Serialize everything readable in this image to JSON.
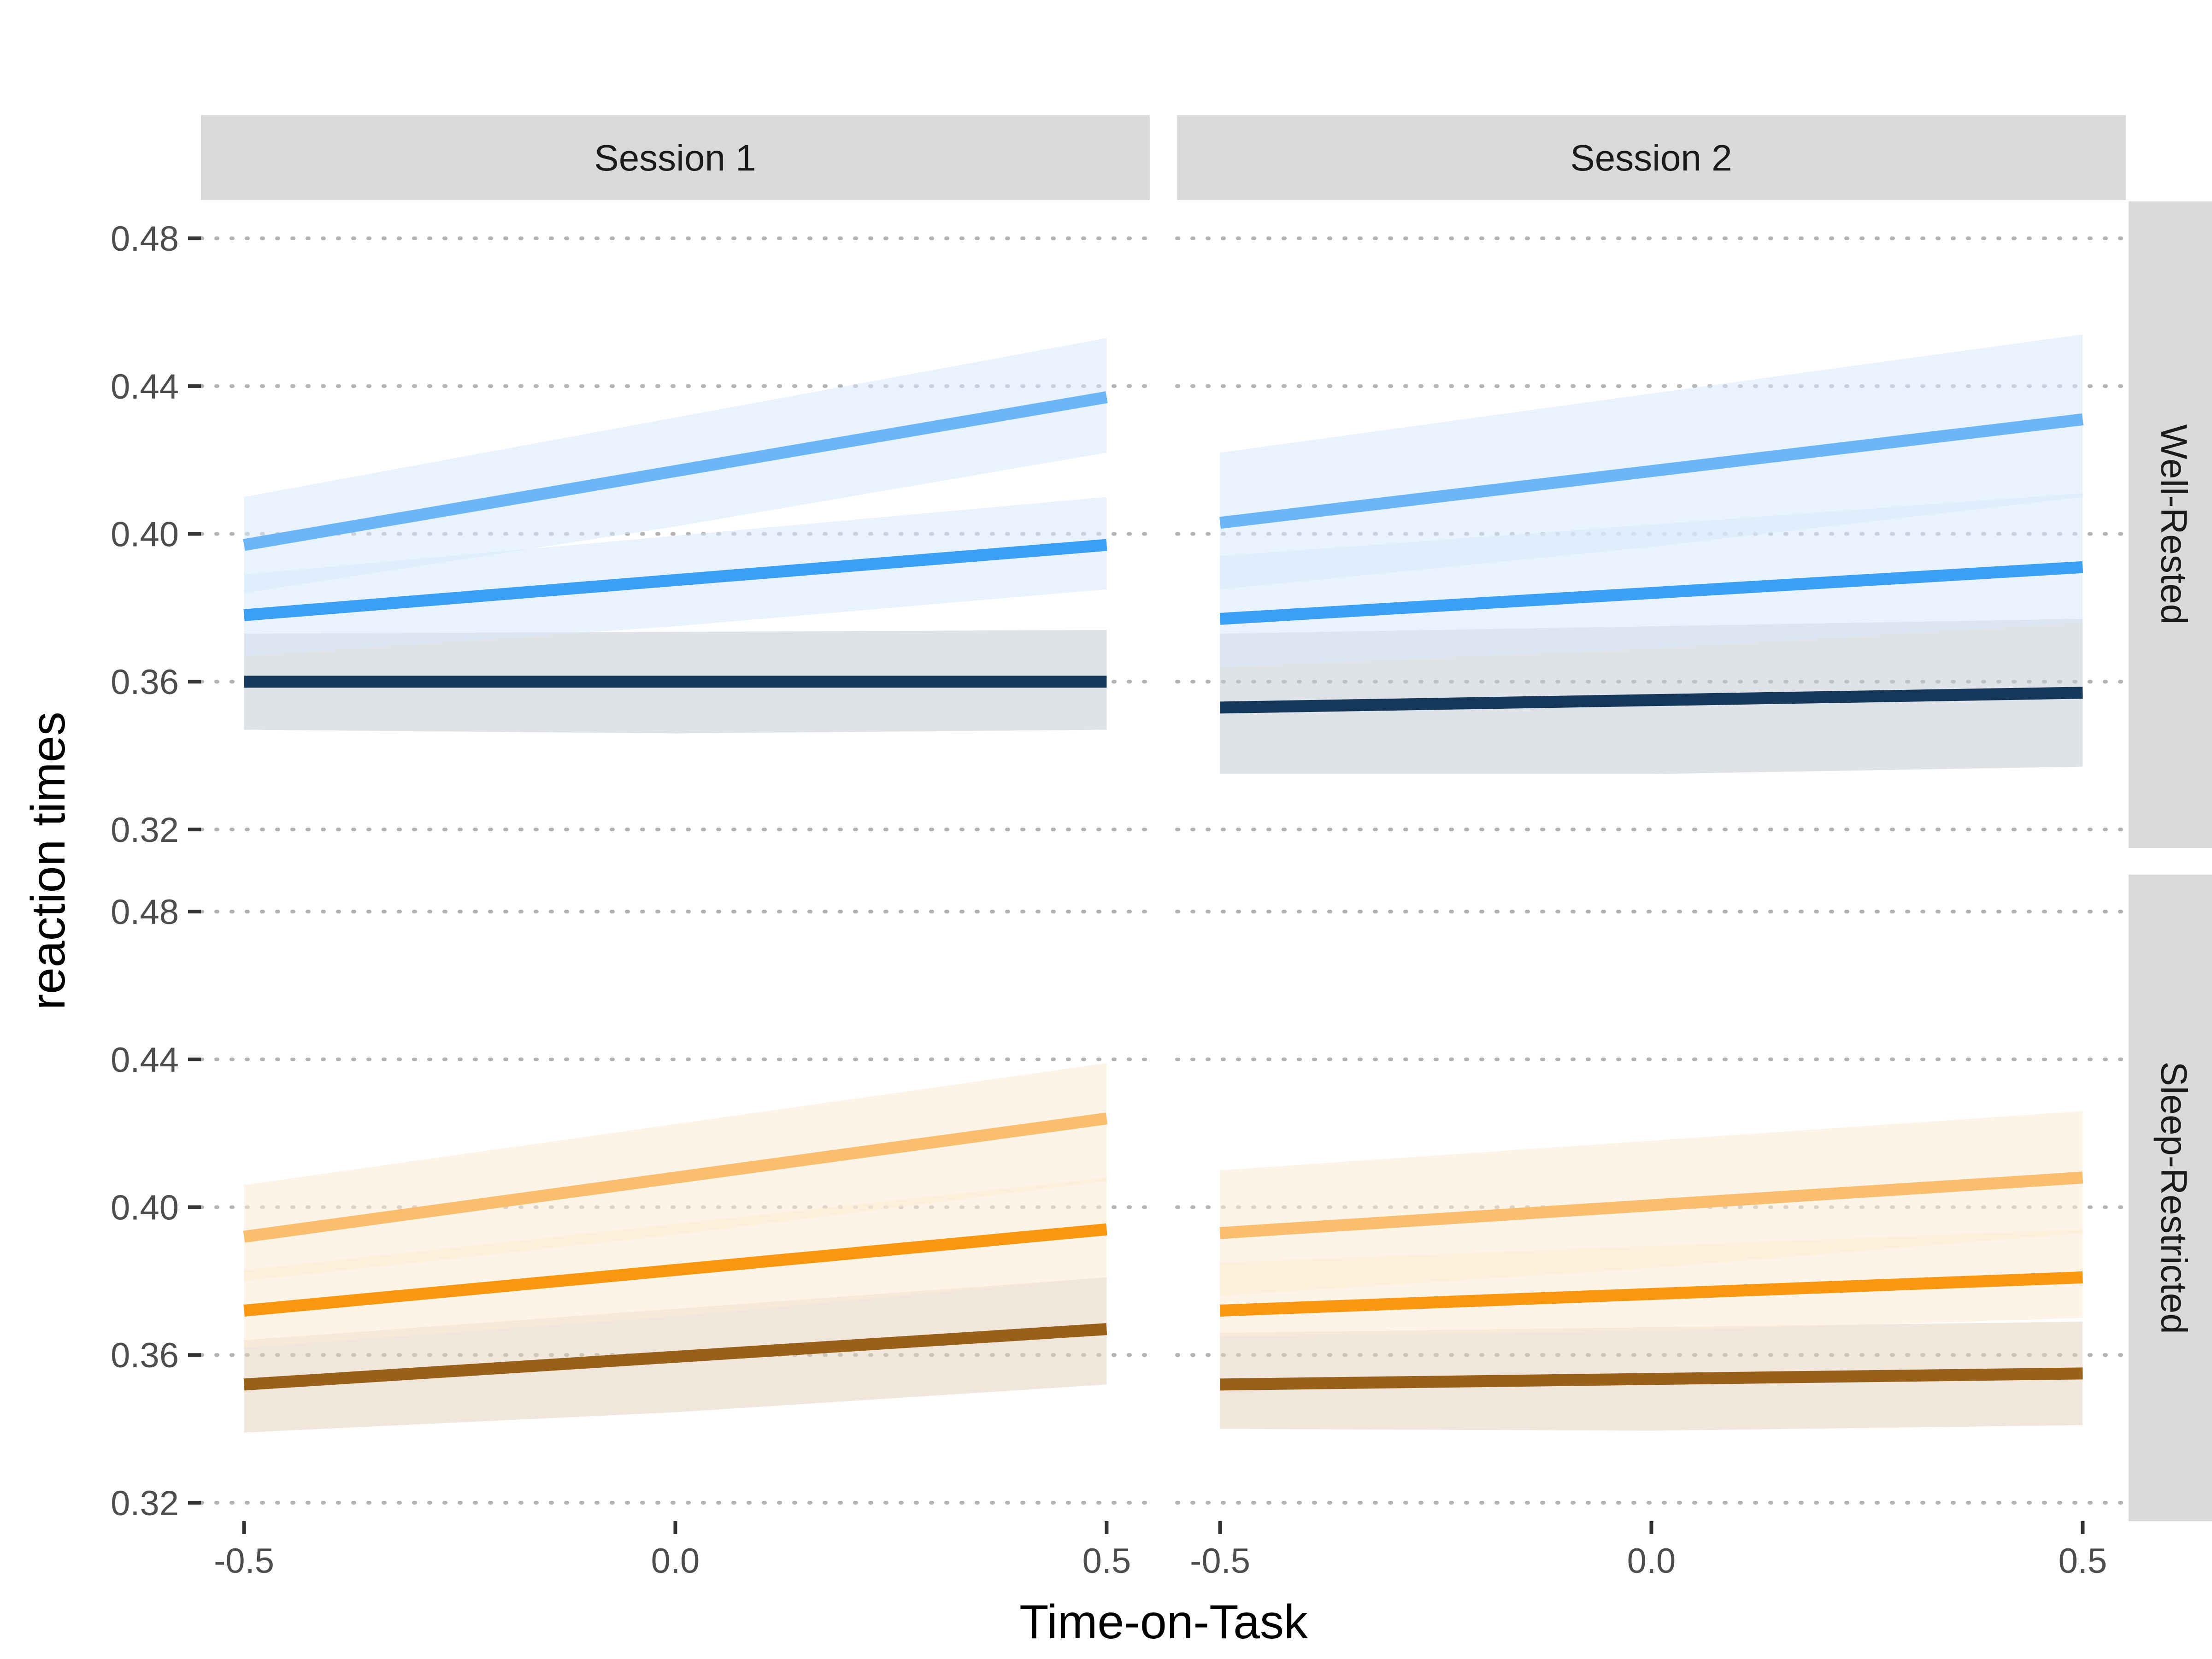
{
  "chart_data": {
    "type": "line",
    "xlabel": "Time-on-Task",
    "ylabel": "reaction times",
    "xlim": [
      -0.55,
      0.55
    ],
    "ylim": [
      0.315,
      0.49
    ],
    "x_ticks": [
      -0.5,
      0.0,
      0.5
    ],
    "x_tick_labels": [
      "-0.5",
      "0.0",
      "0.5"
    ],
    "y_ticks": [
      0.32,
      0.36,
      0.4,
      0.44,
      0.48
    ],
    "y_tick_labels": [
      "0.32",
      "0.36",
      "0.40",
      "0.44",
      "0.48"
    ],
    "grid": "horizontal dotted",
    "columns": [
      "Session 1",
      "Session 2"
    ],
    "rows": [
      "Well-Rested",
      "Sleep-Restricted"
    ],
    "colors": {
      "Well-Rested": [
        "#6cb6f7",
        "#3a9ff5",
        "#14375a"
      ],
      "Sleep-Restricted": [
        "#fbbd6e",
        "#fb970f",
        "#99601a"
      ],
      "Well-Rested-band": [
        "#d7eafc",
        "#d7eafc",
        "#c4ccd3"
      ],
      "Sleep-Restricted-band": [
        "#feead3",
        "#feead3",
        "#e4d2bd"
      ]
    },
    "panels": [
      {
        "row": "Well-Rested",
        "column": "Session 1",
        "series": [
          {
            "x": [
              -0.5,
              0.5
            ],
            "y": [
              0.397,
              0.437
            ],
            "lower": [
              0.384,
              0.422
            ],
            "upper": [
              0.41,
              0.453
            ],
            "mid_band": [
              0.389,
              0.429
            ]
          },
          {
            "x": [
              -0.5,
              0.5
            ],
            "y": [
              0.378,
              0.397
            ],
            "lower": [
              0.367,
              0.385
            ],
            "upper": [
              0.389,
              0.41
            ],
            "mid_band": [
              0.373,
              0.392
            ]
          },
          {
            "x": [
              -0.5,
              0.5
            ],
            "y": [
              0.36,
              0.36
            ],
            "lower": [
              0.347,
              0.347
            ],
            "upper": [
              0.373,
              0.374
            ],
            "mid_band": [
              0.361,
              0.36
            ]
          }
        ]
      },
      {
        "row": "Well-Rested",
        "column": "Session 2",
        "series": [
          {
            "x": [
              -0.5,
              0.5
            ],
            "y": [
              0.403,
              0.431
            ],
            "lower": [
              0.385,
              0.41
            ],
            "upper": [
              0.422,
              0.454
            ],
            "mid_band": [
              0.404,
              0.433
            ]
          },
          {
            "x": [
              -0.5,
              0.5
            ],
            "y": [
              0.377,
              0.391
            ],
            "lower": [
              0.364,
              0.376
            ],
            "upper": [
              0.394,
              0.411
            ],
            "mid_band": [
              0.379,
              0.393
            ]
          },
          {
            "x": [
              -0.5,
              0.5
            ],
            "y": [
              0.353,
              0.357
            ],
            "lower": [
              0.335,
              0.337
            ],
            "upper": [
              0.373,
              0.377
            ],
            "mid_band": [
              0.353,
              0.357
            ]
          }
        ]
      },
      {
        "row": "Sleep-Restricted",
        "column": "Session 1",
        "series": [
          {
            "x": [
              -0.5,
              0.5
            ],
            "y": [
              0.392,
              0.424
            ],
            "lower": [
              0.38,
              0.407
            ],
            "upper": [
              0.406,
              0.439
            ],
            "mid_band": [
              0.393,
              0.423
            ]
          },
          {
            "x": [
              -0.5,
              0.5
            ],
            "y": [
              0.372,
              0.394
            ],
            "lower": [
              0.362,
              0.381
            ],
            "upper": [
              0.383,
              0.408
            ],
            "mid_band": [
              0.372,
              0.394
            ]
          },
          {
            "x": [
              -0.5,
              0.5
            ],
            "y": [
              0.352,
              0.367
            ],
            "lower": [
              0.339,
              0.352
            ],
            "upper": [
              0.364,
              0.381
            ],
            "mid_band": [
              0.351,
              0.367
            ]
          }
        ]
      },
      {
        "row": "Sleep-Restricted",
        "column": "Session 2",
        "series": [
          {
            "x": [
              -0.5,
              0.5
            ],
            "y": [
              0.393,
              0.408
            ],
            "lower": [
              0.376,
              0.393
            ],
            "upper": [
              0.41,
              0.426
            ],
            "mid_band": [
              0.393,
              0.409
            ]
          },
          {
            "x": [
              -0.5,
              0.5
            ],
            "y": [
              0.372,
              0.381
            ],
            "lower": [
              0.365,
              0.37
            ],
            "upper": [
              0.385,
              0.394
            ],
            "mid_band": [
              0.375,
              0.382
            ]
          },
          {
            "x": [
              -0.5,
              0.5
            ],
            "y": [
              0.352,
              0.355
            ],
            "lower": [
              0.34,
              0.341
            ],
            "upper": [
              0.366,
              0.369
            ],
            "mid_band": [
              0.353,
              0.355
            ]
          }
        ]
      }
    ]
  }
}
